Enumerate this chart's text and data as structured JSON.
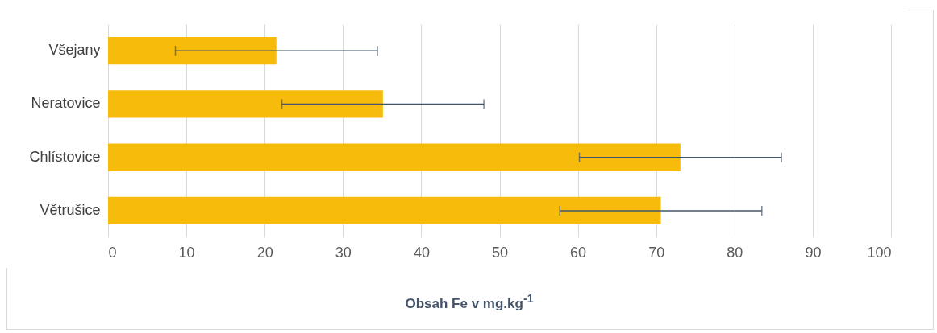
{
  "chart_data": {
    "type": "bar",
    "orientation": "horizontal",
    "categories": [
      "Všejany",
      "Neratovice",
      "Chlístovice",
      "Větrušice"
    ],
    "values": [
      21.5,
      35.1,
      73.1,
      70.6
    ],
    "errors": [
      12.9,
      12.9,
      12.9,
      12.9
    ],
    "color": "#f7bb0c",
    "xlim": [
      0,
      100
    ],
    "xticks": [
      0,
      10,
      20,
      30,
      40,
      50,
      60,
      70,
      80,
      90,
      100
    ],
    "grid": "x",
    "xlabel": "Obsah Fe v mg.kg$^{-1}$"
  }
}
